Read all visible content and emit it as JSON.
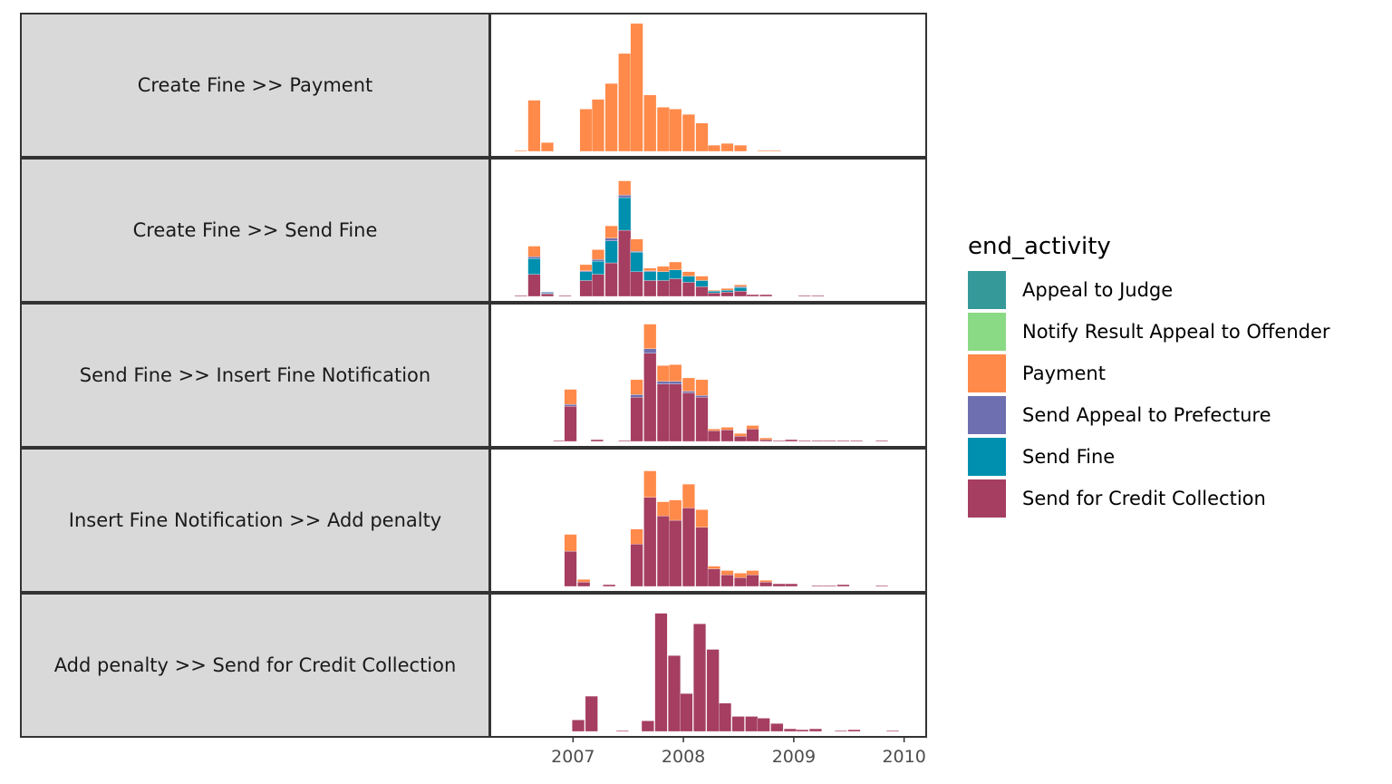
{
  "chart_data": {
    "type": "bar",
    "stacked": true,
    "x_axis": {
      "ticks": [
        2007,
        2008,
        2009,
        2010
      ],
      "range": [
        2006.25,
        2010.2
      ]
    },
    "bin_width": 0.1167,
    "grid": false,
    "legend": {
      "title": "end_activity",
      "placement": "right",
      "entries": [
        {
          "name": "Appeal to Judge",
          "color": "#35999A"
        },
        {
          "name": "Notify Result Appeal to Offender",
          "color": "#8AD985"
        },
        {
          "name": "Payment",
          "color": "#FF8A4A"
        },
        {
          "name": "Send Appeal to Prefecture",
          "color": "#6E6FB0"
        },
        {
          "name": "Send Fine",
          "color": "#0090AF"
        },
        {
          "name": "Send for Credit Collection",
          "color": "#A53E60"
        }
      ]
    },
    "stack_order": [
      "Send for Credit Collection",
      "Send Fine",
      "Send Appeal to Prefecture",
      "Payment",
      "Notify Result Appeal to Offender",
      "Appeal to Judge"
    ],
    "panels": [
      {
        "label": "Create Fine >> Payment",
        "ymax": 148,
        "bins": [
          {
            "x": 2006.53,
            "Payment": 1
          },
          {
            "x": 2006.65,
            "Payment": 58
          },
          {
            "x": 2006.77,
            "Payment": 10
          },
          {
            "x": 2007.12,
            "Payment": 48
          },
          {
            "x": 2007.23,
            "Payment": 59
          },
          {
            "x": 2007.35,
            "Payment": 77
          },
          {
            "x": 2007.47,
            "Payment": 111
          },
          {
            "x": 2007.58,
            "Payment": 145
          },
          {
            "x": 2007.7,
            "Payment": 64
          },
          {
            "x": 2007.82,
            "Payment": 50
          },
          {
            "x": 2007.93,
            "Payment": 48
          },
          {
            "x": 2008.05,
            "Payment": 42
          },
          {
            "x": 2008.17,
            "Payment": 32
          },
          {
            "x": 2008.28,
            "Payment": 7
          },
          {
            "x": 2008.4,
            "Payment": 9
          },
          {
            "x": 2008.52,
            "Payment": 7
          },
          {
            "x": 2008.73,
            "Payment": 1
          },
          {
            "x": 2008.83,
            "Payment": 1
          }
        ]
      },
      {
        "label": "Create Fine >> Send Fine",
        "ymax": 148,
        "bins": [
          {
            "x": 2006.53,
            "Send for Credit Collection": 1
          },
          {
            "x": 2006.65,
            "Send for Credit Collection": 25,
            "Send Fine": 18,
            "Send Appeal to Prefecture": 2,
            "Payment": 12
          },
          {
            "x": 2006.77,
            "Send for Credit Collection": 3,
            "Send Fine": 1,
            "Send Appeal to Prefecture": 1
          },
          {
            "x": 2006.93,
            "Send for Credit Collection": 1
          },
          {
            "x": 2007.12,
            "Send for Credit Collection": 18,
            "Send Fine": 10,
            "Send Appeal to Prefecture": 1,
            "Payment": 7
          },
          {
            "x": 2007.23,
            "Send for Credit Collection": 25,
            "Send Fine": 15,
            "Send Appeal to Prefecture": 2,
            "Payment": 11
          },
          {
            "x": 2007.35,
            "Send for Credit Collection": 38,
            "Send Fine": 25,
            "Send Appeal to Prefecture": 3,
            "Payment": 14
          },
          {
            "x": 2007.47,
            "Send for Credit Collection": 75,
            "Send Fine": 37,
            "Send Appeal to Prefecture": 3,
            "Payment": 16
          },
          {
            "x": 2007.58,
            "Send for Credit Collection": 28,
            "Send Fine": 22,
            "Send Appeal to Prefecture": 1,
            "Payment": 14
          },
          {
            "x": 2007.7,
            "Send for Credit Collection": 18,
            "Send Fine": 10,
            "Send Appeal to Prefecture": 1,
            "Payment": 3
          },
          {
            "x": 2007.82,
            "Send for Credit Collection": 18,
            "Send Fine": 10,
            "Payment": 6
          },
          {
            "x": 2007.93,
            "Send for Credit Collection": 20,
            "Send Fine": 10,
            "Payment": 9
          },
          {
            "x": 2008.05,
            "Send for Credit Collection": 16,
            "Send Fine": 7,
            "Payment": 5
          },
          {
            "x": 2008.17,
            "Send for Credit Collection": 11,
            "Send Fine": 7,
            "Payment": 5
          },
          {
            "x": 2008.28,
            "Send for Credit Collection": 4,
            "Send Fine": 2,
            "Payment": 1
          },
          {
            "x": 2008.4,
            "Send for Credit Collection": 5,
            "Send Fine": 2,
            "Payment": 2
          },
          {
            "x": 2008.52,
            "Send for Credit Collection": 6,
            "Send Fine": 4,
            "Send Appeal to Prefecture": 1,
            "Payment": 2
          },
          {
            "x": 2008.63,
            "Send for Credit Collection": 2
          },
          {
            "x": 2008.75,
            "Send for Credit Collection": 2
          },
          {
            "x": 2009.1,
            "Send for Credit Collection": 1
          },
          {
            "x": 2009.22,
            "Send for Credit Collection": 1
          }
        ]
      },
      {
        "label": "Send Fine >> Insert Fine Notification",
        "ymax": 148,
        "bins": [
          {
            "x": 2006.88,
            "Send for Credit Collection": 1
          },
          {
            "x": 2006.98,
            "Send for Credit Collection": 40,
            "Send Appeal to Prefecture": 2,
            "Payment": 17
          },
          {
            "x": 2007.22,
            "Send for Credit Collection": 2
          },
          {
            "x": 2007.47,
            "Send for Credit Collection": 1
          },
          {
            "x": 2007.58,
            "Send for Credit Collection": 50,
            "Send Appeal to Prefecture": 3,
            "Payment": 17
          },
          {
            "x": 2007.7,
            "Send for Credit Collection": 100,
            "Send Appeal to Prefecture": 5,
            "Payment": 28
          },
          {
            "x": 2007.82,
            "Send for Credit Collection": 65,
            "Send Appeal to Prefecture": 3,
            "Payment": 18
          },
          {
            "x": 2007.93,
            "Send for Credit Collection": 65,
            "Send Appeal to Prefecture": 3,
            "Payment": 19
          },
          {
            "x": 2008.05,
            "Send for Credit Collection": 55,
            "Send Appeal to Prefecture": 2,
            "Payment": 15
          },
          {
            "x": 2008.17,
            "Send for Credit Collection": 50,
            "Send Appeal to Prefecture": 2,
            "Payment": 18
          },
          {
            "x": 2008.28,
            "Send for Credit Collection": 12,
            "Payment": 2
          },
          {
            "x": 2008.4,
            "Send for Credit Collection": 13,
            "Payment": 3
          },
          {
            "x": 2008.52,
            "Send for Credit Collection": 6,
            "Payment": 3
          },
          {
            "x": 2008.63,
            "Send for Credit Collection": 14,
            "Payment": 4
          },
          {
            "x": 2008.75,
            "Send for Credit Collection": 2,
            "Payment": 2
          },
          {
            "x": 2008.87,
            "Send for Credit Collection": 1
          },
          {
            "x": 2008.98,
            "Send for Credit Collection": 2
          },
          {
            "x": 2009.1,
            "Send for Credit Collection": 1
          },
          {
            "x": 2009.22,
            "Send for Credit Collection": 1
          },
          {
            "x": 2009.33,
            "Send for Credit Collection": 1
          },
          {
            "x": 2009.45,
            "Send for Credit Collection": 1
          },
          {
            "x": 2009.57,
            "Send for Credit Collection": 1
          },
          {
            "x": 2009.8,
            "Send for Credit Collection": 1
          }
        ]
      },
      {
        "label": "Insert Fine Notification >> Add penalty",
        "ymax": 148,
        "bins": [
          {
            "x": 2006.98,
            "Send for Credit Collection": 40,
            "Payment": 19
          },
          {
            "x": 2007.1,
            "Send for Credit Collection": 5,
            "Payment": 3
          },
          {
            "x": 2007.33,
            "Send for Credit Collection": 2
          },
          {
            "x": 2007.58,
            "Send for Credit Collection": 48,
            "Payment": 17
          },
          {
            "x": 2007.7,
            "Send for Credit Collection": 101,
            "Payment": 30
          },
          {
            "x": 2007.82,
            "Send for Credit Collection": 80,
            "Payment": 16
          },
          {
            "x": 2007.93,
            "Send for Credit Collection": 75,
            "Payment": 23
          },
          {
            "x": 2008.05,
            "Send for Credit Collection": 89,
            "Payment": 27
          },
          {
            "x": 2008.17,
            "Send for Credit Collection": 67,
            "Payment": 20
          },
          {
            "x": 2008.28,
            "Send for Credit Collection": 20,
            "Payment": 3
          },
          {
            "x": 2008.4,
            "Send for Credit Collection": 13,
            "Payment": 5
          },
          {
            "x": 2008.52,
            "Send for Credit Collection": 10,
            "Payment": 5
          },
          {
            "x": 2008.63,
            "Send for Credit Collection": 13,
            "Payment": 5
          },
          {
            "x": 2008.75,
            "Send for Credit Collection": 5,
            "Payment": 2
          },
          {
            "x": 2008.87,
            "Send for Credit Collection": 3
          },
          {
            "x": 2008.98,
            "Send for Credit Collection": 3
          },
          {
            "x": 2009.22,
            "Send for Credit Collection": 1
          },
          {
            "x": 2009.33,
            "Send for Credit Collection": 1
          },
          {
            "x": 2009.45,
            "Send for Credit Collection": 2
          },
          {
            "x": 2009.8,
            "Send for Credit Collection": 1
          }
        ]
      },
      {
        "label": "Add penalty >> Send for Credit Collection",
        "ymax": 148,
        "bins": [
          {
            "x": 2007.05,
            "Send for Credit Collection": 13
          },
          {
            "x": 2007.17,
            "Send for Credit Collection": 40
          },
          {
            "x": 2007.45,
            "Send for Credit Collection": 1
          },
          {
            "x": 2007.68,
            "Send for Credit Collection": 12
          },
          {
            "x": 2007.8,
            "Send for Credit Collection": 134
          },
          {
            "x": 2007.92,
            "Send for Credit Collection": 86
          },
          {
            "x": 2008.03,
            "Send for Credit Collection": 43
          },
          {
            "x": 2008.15,
            "Send for Credit Collection": 122
          },
          {
            "x": 2008.27,
            "Send for Credit Collection": 93
          },
          {
            "x": 2008.38,
            "Send for Credit Collection": 32
          },
          {
            "x": 2008.5,
            "Send for Credit Collection": 17
          },
          {
            "x": 2008.62,
            "Send for Credit Collection": 17
          },
          {
            "x": 2008.73,
            "Send for Credit Collection": 15
          },
          {
            "x": 2008.85,
            "Send for Credit Collection": 9
          },
          {
            "x": 2008.97,
            "Send for Credit Collection": 3
          },
          {
            "x": 2009.08,
            "Send for Credit Collection": 2
          },
          {
            "x": 2009.2,
            "Send for Credit Collection": 3
          },
          {
            "x": 2009.43,
            "Send for Credit Collection": 1
          },
          {
            "x": 2009.55,
            "Send for Credit Collection": 2
          },
          {
            "x": 2009.9,
            "Send for Credit Collection": 1
          }
        ]
      }
    ]
  }
}
